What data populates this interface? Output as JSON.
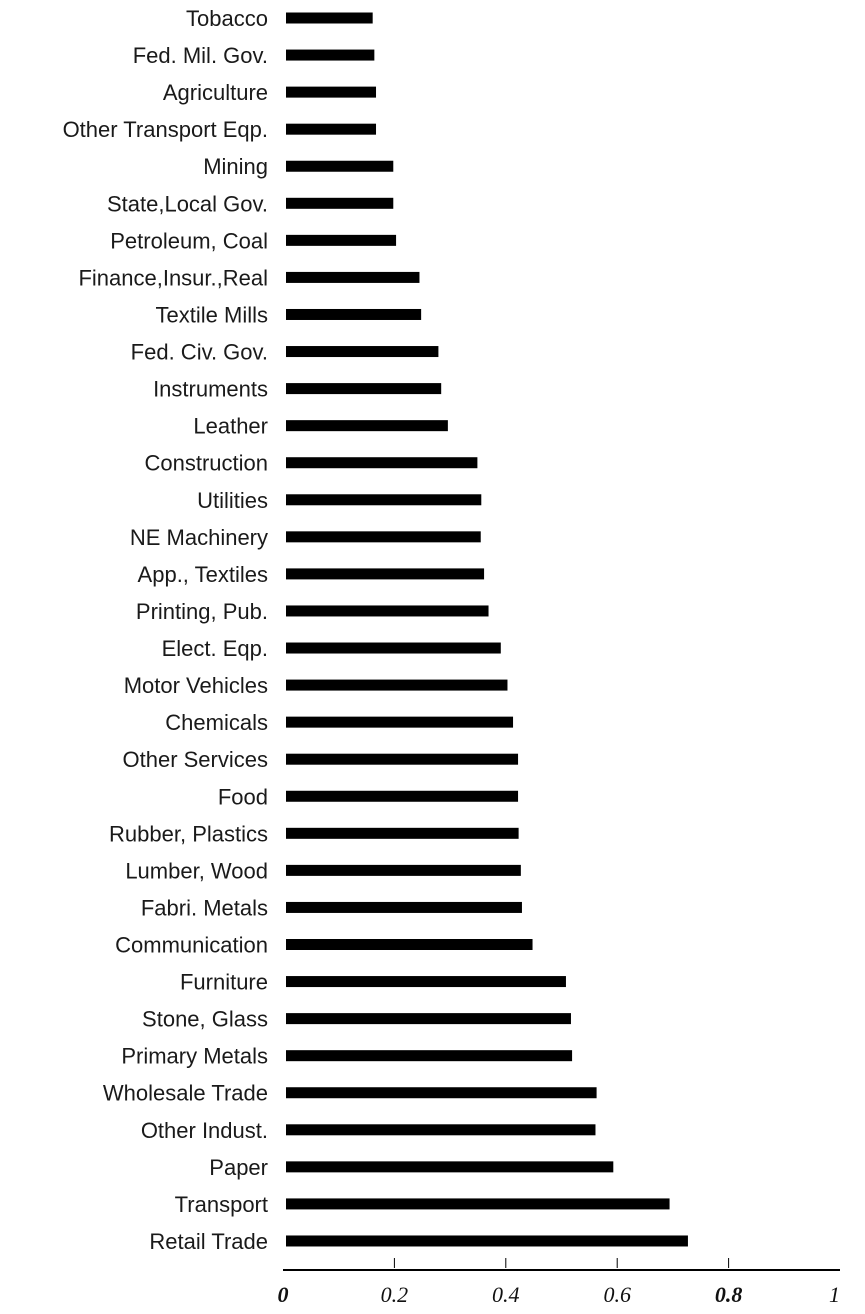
{
  "chart_data": {
    "type": "bar",
    "orientation": "horizontal",
    "categories": [
      "Tobacco",
      "Fed. Mil. Gov.",
      "Agriculture",
      "Other Transport Eqp.",
      "Mining",
      "State,Local Gov.",
      "Petroleum,  Coal",
      "Finance,Insur.,Real",
      "Textile Mills",
      "Fed. Civ. Gov.",
      "Instruments",
      "Leather",
      "Construction",
      "Utilities",
      "NE Machinery",
      "App., Textiles",
      "Printing, Pub.",
      "Elect. Eqp.",
      "Motor Vehicles",
      "Chemicals",
      "Other Services",
      "Food",
      "Rubber, Plastics",
      "Lumber,  Wood",
      "Fabri. Metals",
      "Communication",
      "Furniture",
      "Stone, Glass",
      "Primary Metals",
      "Wholesale Trade",
      "Other Indust.",
      "Paper",
      "Transport",
      "Retail Trade"
    ],
    "values": [
      0.161,
      0.164,
      0.167,
      0.167,
      0.198,
      0.198,
      0.203,
      0.245,
      0.248,
      0.279,
      0.284,
      0.296,
      0.349,
      0.356,
      0.355,
      0.361,
      0.369,
      0.391,
      0.403,
      0.413,
      0.422,
      0.422,
      0.423,
      0.427,
      0.429,
      0.448,
      0.508,
      0.517,
      0.519,
      0.563,
      0.561,
      0.593,
      0.694,
      0.727
    ],
    "xlim": [
      0,
      1
    ],
    "x_ticks": [
      "0",
      "0.2",
      "0.4",
      "0.6",
      "0.8",
      "1"
    ],
    "grid": false
  }
}
